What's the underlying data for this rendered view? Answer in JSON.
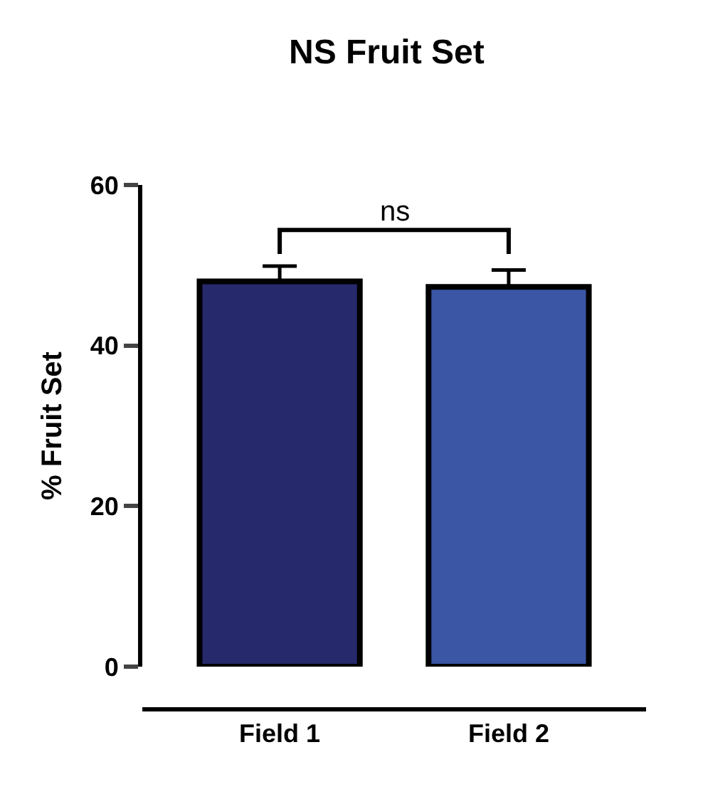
{
  "chart_data": {
    "type": "bar",
    "title": "NS Fruit Set",
    "ylabel": "% Fruit Set",
    "categories": [
      "Field 1",
      "Field 2"
    ],
    "values": [
      48,
      47.3
    ],
    "colors": [
      "#27296d",
      "#3a56a5"
    ],
    "errors": [
      [
        48,
        49.9
      ],
      [
        47.3,
        49.4
      ]
    ],
    "ylim": [
      0,
      60
    ],
    "yticks": [
      0,
      20,
      40,
      60
    ],
    "annotations": [
      "ns"
    ]
  }
}
